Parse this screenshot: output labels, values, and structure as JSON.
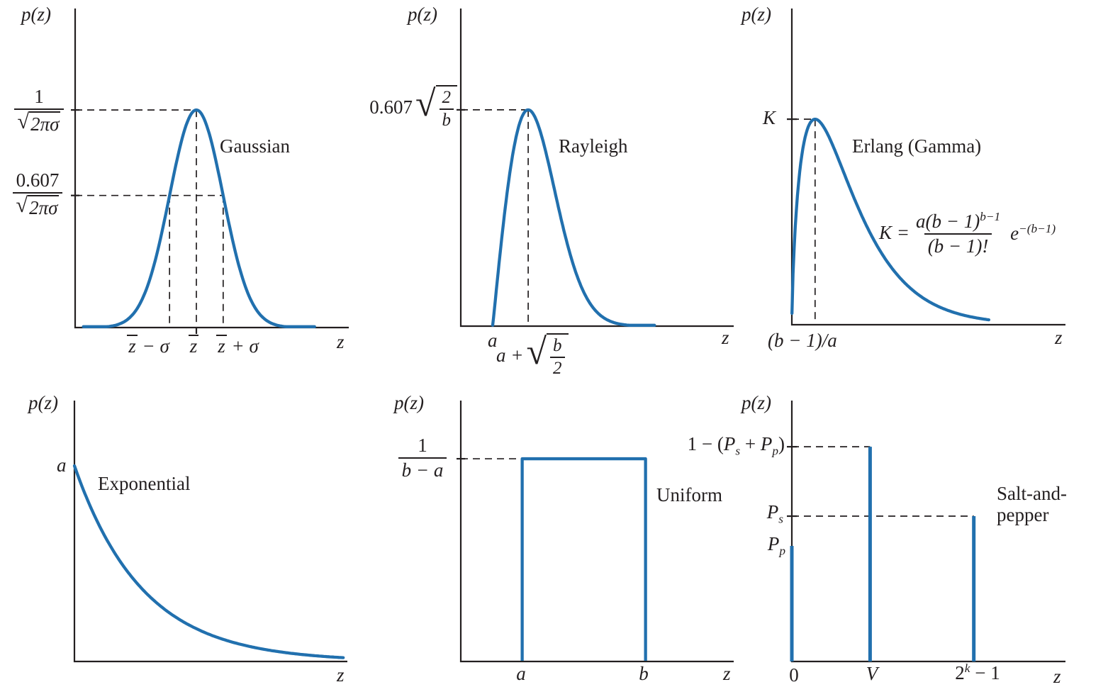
{
  "colors": {
    "curve": "#2170ae",
    "ink": "#231f20",
    "background": "#ffffff"
  },
  "axis": {
    "ylabel": "p(z)",
    "xlabel": "z"
  },
  "symbols": {
    "sqrt": "√"
  },
  "panels": {
    "gaussian": {
      "name": "Gaussian",
      "peak_frac": {
        "num": "1",
        "radicand": "2πσ"
      },
      "level_frac": {
        "num": "0.607",
        "radicand": "2πσ"
      },
      "xticks": {
        "minus": {
          "bar": "z",
          "rest": " − σ"
        },
        "mean": {
          "bar": "z",
          "rest": ""
        },
        "plus": {
          "bar": "z",
          "rest": " + σ"
        }
      }
    },
    "rayleigh": {
      "name": "Rayleigh",
      "peak_coeff": "0.607",
      "peak_root": {
        "num": "2",
        "den": "b"
      },
      "xtick_a": "a",
      "xtick_mode_prefix": "a +",
      "xtick_mode_root": {
        "num": "b",
        "den": "2"
      }
    },
    "erlang": {
      "name": "Erlang (Gamma)",
      "peak_tick": "K",
      "formula": {
        "lhs": "K = ",
        "num_base": "a(b − 1)",
        "num_sup": "b−1",
        "den": "(b − 1)!",
        "exp_base": "e",
        "exp_sup": "−(b−1)"
      },
      "xtick_mode": "(b − 1)/a"
    },
    "exponential": {
      "name": "Exponential",
      "ytick": "a"
    },
    "uniform": {
      "name": "Uniform",
      "level_frac": {
        "num": "1",
        "den": "b − a"
      },
      "xtick_a": "a",
      "xtick_b": "b"
    },
    "saltpepper": {
      "name_line1": "Salt-and-",
      "name_line2": "pepper",
      "level_top": {
        "open": "1 − (",
        "p_base": "P",
        "p_sub": "s",
        "plus": " + ",
        "q_base": "P",
        "q_sub": "p",
        "close": ")"
      },
      "level_ps": {
        "base": "P",
        "sub": "s"
      },
      "level_pp": {
        "base": "P",
        "sub": "p"
      },
      "xticks": {
        "zero": "0",
        "v": "V",
        "max_base": "2",
        "max_sup": "k",
        "max_rest": " − 1"
      }
    }
  },
  "chart_data": [
    {
      "id": "gaussian",
      "type": "line",
      "title": "Gaussian",
      "xlabel": "z",
      "ylabel": "p(z)",
      "axes": "symbolic, no numeric scale",
      "curve": {
        "family": "gaussian",
        "mode_x": 0.443,
        "sigma_x": 0.098,
        "peak_y": 0.682,
        "level_ratio": 0.607,
        "draw_range": [
          0.03,
          0.875
        ]
      },
      "annotations": {
        "peak_value": "1/√(2πσ)",
        "level_value": "0.607/√(2πσ)",
        "xtick_labels": [
          "z̄ − σ",
          "z̄",
          "z̄ + σ"
        ],
        "xtick_pos": [
          0.345,
          0.443,
          0.541
        ]
      }
    },
    {
      "id": "rayleigh",
      "type": "line",
      "title": "Rayleigh",
      "xlabel": "z",
      "ylabel": "p(z)",
      "axes": "symbolic, no numeric scale",
      "curve": {
        "family": "rayleigh",
        "onset_x": 0.117,
        "sigma_x": 0.13,
        "mode_x": 0.247,
        "peak_y": 0.681,
        "draw_range": [
          0.117,
          0.71
        ]
      },
      "annotations": {
        "peak_value": "0.607√(2/b)",
        "xtick_labels": [
          "a",
          "a + √(b/2)"
        ],
        "xtick_pos": [
          0.117,
          0.247
        ]
      }
    },
    {
      "id": "erlang",
      "type": "line",
      "title": "Erlang (Gamma)",
      "xlabel": "z",
      "ylabel": "p(z)",
      "axes": "symbolic, no numeric scale",
      "curve": {
        "family": "gamma",
        "mode_x": 0.085,
        "shape": 0.7,
        "peak_y": 0.65,
        "draw_range": [
          0,
          0.72
        ]
      },
      "annotations": {
        "peak_value": "K",
        "formula": "K = a(b − 1)^(b−1)/(b − 1)! · e^(−(b−1))",
        "xtick_labels": [
          "(b − 1)/a"
        ],
        "xtick_pos": [
          0.085
        ]
      }
    },
    {
      "id": "exponential",
      "type": "line",
      "title": "Exponential",
      "xlabel": "z",
      "ylabel": "p(z)",
      "axes": "symbolic, no numeric scale",
      "curve": {
        "family": "exponential",
        "start_y": 0.75,
        "tau_x": 0.25,
        "draw_range": [
          0,
          0.985
        ]
      },
      "annotations": {
        "ytick_labels": [
          "a"
        ]
      }
    },
    {
      "id": "uniform",
      "type": "line",
      "title": "Uniform",
      "xlabel": "z",
      "ylabel": "p(z)",
      "axes": "symbolic, no numeric scale",
      "curve": {
        "family": "uniform",
        "a_x": 0.225,
        "b_x": 0.677,
        "height_y": 0.777
      },
      "annotations": {
        "level_value": "1/(b − a)",
        "xtick_labels": [
          "a",
          "b"
        ],
        "xtick_pos": [
          0.225,
          0.677
        ]
      }
    },
    {
      "id": "saltpepper",
      "type": "bar",
      "title": "Salt-and-pepper",
      "xlabel": "z",
      "ylabel": "p(z)",
      "axes": "symbolic, no numeric scale",
      "bars": [
        {
          "x": 0.0,
          "height_y": 0.443,
          "x_label": "0",
          "height_label": "Pp"
        },
        {
          "x": 0.286,
          "height_y": 0.823,
          "x_label": "V",
          "height_label": "1 − (Ps + Pp)"
        },
        {
          "x": 0.665,
          "height_y": 0.557,
          "x_label": "2^k − 1",
          "height_label": "Ps"
        }
      ]
    }
  ]
}
